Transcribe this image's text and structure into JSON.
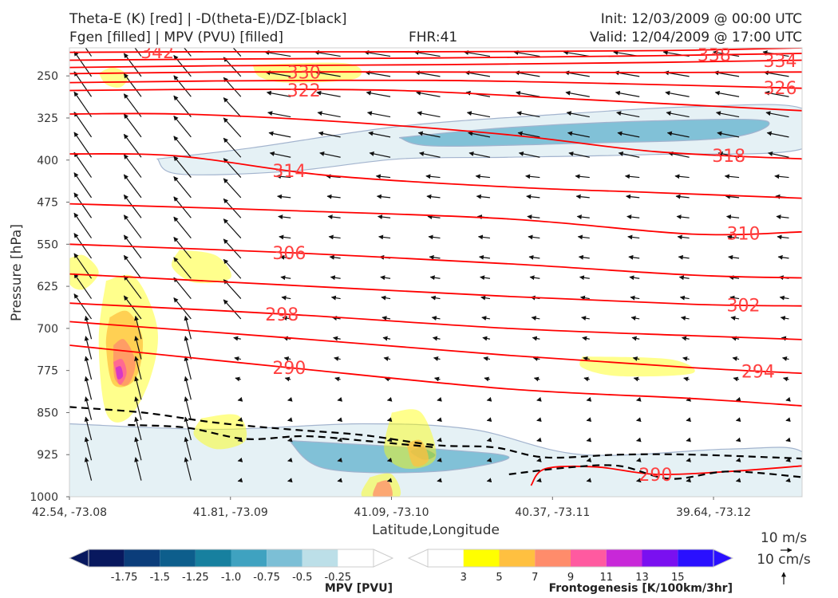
{
  "header": {
    "title_line1": "Theta-E (K) [red] | -D(theta-E)/DZ-[black]",
    "title_line2": "Fgen [filled] | MPV (PVU) [filled]",
    "fhr": "FHR:41",
    "init": "Init: 12/03/2009 @ 00:00 UTC",
    "valid": "Valid: 12/04/2009 @ 17:00 UTC"
  },
  "colors": {
    "theta_e": "#ff0000",
    "ddz": "#000000",
    "mpv": [
      "#08185e",
      "#0b3d7a",
      "#0d5e8c",
      "#17809f",
      "#3fa2c0",
      "#7cbfd6",
      "#bcdfe8",
      "#ffffff"
    ],
    "fgen": [
      "#ffffff",
      "#ffff00",
      "#ffc040",
      "#ff8c6b",
      "#ff5aa0",
      "#c828d8",
      "#7a10f0",
      "#2a10ff"
    ]
  },
  "chart_data": {
    "type": "cross-section",
    "ylabel": "Pressure [hPa]",
    "xlabel": "Latitude,Longitude",
    "y_ticks": [
      250,
      325,
      400,
      475,
      550,
      625,
      700,
      775,
      850,
      925,
      1000
    ],
    "ylim": [
      1000,
      200
    ],
    "y_inverted": true,
    "x_ticks": [
      "42.54, -73.08",
      "41.81, -73.09",
      "41.09, -73.10",
      "40.37, -73.11",
      "39.64, -73.12"
    ],
    "theta_e_contours": [
      {
        "level": 342,
        "points": [
          [
            0.0,
            208
          ],
          [
            0.2,
            207
          ],
          [
            0.5,
            207
          ],
          [
            0.8,
            205
          ],
          [
            1.0,
            200
          ]
        ]
      },
      {
        "level": 338,
        "points": [
          [
            0.0,
            222
          ],
          [
            0.2,
            220
          ],
          [
            0.5,
            218
          ],
          [
            0.8,
            214
          ],
          [
            1.0,
            210
          ]
        ]
      },
      {
        "level": 334,
        "points": [
          [
            0.0,
            235
          ],
          [
            0.2,
            232
          ],
          [
            0.5,
            230
          ],
          [
            0.8,
            226
          ],
          [
            1.0,
            222
          ]
        ]
      },
      {
        "level": 330,
        "points": [
          [
            0.0,
            246
          ],
          [
            0.2,
            243
          ],
          [
            0.5,
            243
          ],
          [
            0.8,
            244
          ],
          [
            1.0,
            243
          ]
        ]
      },
      {
        "level": 326,
        "points": [
          [
            0.0,
            262
          ],
          [
            0.2,
            259
          ],
          [
            0.5,
            258
          ],
          [
            0.75,
            264
          ],
          [
            1.0,
            272
          ]
        ]
      },
      {
        "level": 322,
        "points": [
          [
            0.0,
            276
          ],
          [
            0.2,
            274
          ],
          [
            0.45,
            276
          ],
          [
            0.7,
            292
          ],
          [
            1.0,
            312
          ]
        ]
      },
      {
        "level": 318,
        "points": [
          [
            0.0,
            318
          ],
          [
            0.15,
            318
          ],
          [
            0.35,
            330
          ],
          [
            0.6,
            355
          ],
          [
            0.8,
            385
          ],
          [
            1.0,
            398
          ]
        ]
      },
      {
        "level": 314,
        "points": [
          [
            0.0,
            389
          ],
          [
            0.15,
            393
          ],
          [
            0.35,
            427
          ],
          [
            0.6,
            448
          ],
          [
            0.8,
            458
          ],
          [
            1.0,
            468
          ]
        ]
      },
      {
        "level": 310,
        "points": [
          [
            0.0,
            478
          ],
          [
            0.3,
            490
          ],
          [
            0.6,
            505
          ],
          [
            0.85,
            532
          ],
          [
            1.0,
            528
          ]
        ]
      },
      {
        "level": 306,
        "points": [
          [
            0.0,
            550
          ],
          [
            0.3,
            565
          ],
          [
            0.6,
            585
          ],
          [
            0.85,
            605
          ],
          [
            1.0,
            610
          ]
        ]
      },
      {
        "level": 302,
        "points": [
          [
            0.0,
            603
          ],
          [
            0.3,
            623
          ],
          [
            0.6,
            643
          ],
          [
            0.85,
            657
          ],
          [
            1.0,
            660
          ]
        ]
      },
      {
        "level": 298,
        "points": [
          [
            0.0,
            655
          ],
          [
            0.3,
            675
          ],
          [
            0.6,
            700
          ],
          [
            0.85,
            713
          ],
          [
            1.0,
            720
          ]
        ]
      },
      {
        "level": 294,
        "points": [
          [
            0.0,
            688
          ],
          [
            0.3,
            717
          ],
          [
            0.6,
            748
          ],
          [
            0.85,
            770
          ],
          [
            1.0,
            780
          ]
        ]
      },
      {
        "level": 290,
        "points": [
          [
            0.0,
            730
          ],
          [
            0.3,
            770
          ],
          [
            0.6,
            808
          ],
          [
            0.85,
            825
          ],
          [
            1.0,
            838
          ]
        ]
      },
      {
        "level": 290,
        "points": [
          [
            0.63,
            980
          ],
          [
            0.65,
            950
          ],
          [
            0.72,
            947
          ],
          [
            0.8,
            960
          ],
          [
            0.9,
            955
          ],
          [
            1.0,
            945
          ]
        ]
      }
    ],
    "ddz_contours": [
      {
        "points": [
          [
            0.0,
            840
          ],
          [
            0.1,
            850
          ],
          [
            0.2,
            868
          ],
          [
            0.3,
            880
          ],
          [
            0.4,
            890
          ],
          [
            0.5,
            908
          ],
          [
            0.58,
            912
          ],
          [
            0.65,
            930
          ],
          [
            0.75,
            925
          ],
          [
            0.85,
            925
          ],
          [
            1.0,
            932
          ]
        ]
      },
      {
        "points": [
          [
            0.08,
            872
          ],
          [
            0.16,
            877
          ],
          [
            0.24,
            897
          ],
          [
            0.32,
            892
          ],
          [
            0.4,
            900
          ],
          [
            0.5,
            912
          ]
        ]
      },
      {
        "points": [
          [
            0.6,
            960
          ],
          [
            0.68,
            948
          ],
          [
            0.75,
            945
          ],
          [
            0.82,
            968
          ],
          [
            0.9,
            955
          ],
          [
            1.0,
            965
          ]
        ]
      }
    ],
    "mpv_regions": [
      {
        "value": -0.25,
        "points": [
          [
            0.12,
            398
          ],
          [
            0.25,
            378
          ],
          [
            0.45,
            340
          ],
          [
            0.65,
            320
          ],
          [
            0.85,
            305
          ],
          [
            1.0,
            308
          ],
          [
            1.0,
            380
          ],
          [
            0.8,
            390
          ],
          [
            0.6,
            395
          ],
          [
            0.45,
            398
          ],
          [
            0.3,
            420
          ],
          [
            0.15,
            425
          ]
        ]
      },
      {
        "value": -0.5,
        "points": [
          [
            0.45,
            360
          ],
          [
            0.6,
            342
          ],
          [
            0.8,
            330
          ],
          [
            0.95,
            330
          ],
          [
            0.9,
            360
          ],
          [
            0.7,
            370
          ],
          [
            0.5,
            375
          ]
        ]
      },
      {
        "value": -0.25,
        "points": [
          [
            0.0,
            870
          ],
          [
            0.2,
            880
          ],
          [
            0.4,
            870
          ],
          [
            0.55,
            880
          ],
          [
            0.7,
            925
          ],
          [
            0.9,
            915
          ],
          [
            1.0,
            920
          ],
          [
            1.0,
            1000
          ],
          [
            0.0,
            1000
          ]
        ]
      },
      {
        "value": -0.5,
        "points": [
          [
            0.3,
            900
          ],
          [
            0.5,
            915
          ],
          [
            0.6,
            930
          ],
          [
            0.5,
            955
          ],
          [
            0.35,
            950
          ]
        ]
      },
      {
        "value": -0.75,
        "points": [
          [
            0.48,
            910
          ],
          [
            0.5,
            925
          ],
          [
            0.485,
            935
          ],
          [
            0.465,
            920
          ]
        ]
      }
    ],
    "fgen_regions": [
      {
        "value": 3,
        "points": [
          [
            0.04,
            245
          ],
          [
            0.06,
            235
          ],
          [
            0.08,
            250
          ],
          [
            0.07,
            270
          ],
          [
            0.05,
            265
          ]
        ]
      },
      {
        "value": 3,
        "points": [
          [
            0.25,
            230
          ],
          [
            0.38,
            228
          ],
          [
            0.39,
            255
          ],
          [
            0.3,
            262
          ],
          [
            0.26,
            252
          ]
        ]
      },
      {
        "value": 3,
        "points": [
          [
            0.0,
            575
          ],
          [
            0.02,
            570
          ],
          [
            0.04,
            600
          ],
          [
            0.02,
            630
          ],
          [
            0.0,
            620
          ]
        ]
      },
      {
        "value": 3,
        "points": [
          [
            0.15,
            560
          ],
          [
            0.2,
            570
          ],
          [
            0.22,
            610
          ],
          [
            0.17,
            618
          ],
          [
            0.14,
            590
          ]
        ]
      },
      {
        "value": 3,
        "points": [
          [
            0.05,
            615
          ],
          [
            0.09,
            610
          ],
          [
            0.12,
            700
          ],
          [
            0.11,
            790
          ],
          [
            0.08,
            860
          ],
          [
            0.05,
            850
          ],
          [
            0.04,
            720
          ]
        ]
      },
      {
        "value": 5,
        "points": [
          [
            0.055,
            680
          ],
          [
            0.08,
            670
          ],
          [
            0.1,
            720
          ],
          [
            0.09,
            790
          ],
          [
            0.06,
            800
          ],
          [
            0.05,
            730
          ]
        ]
      },
      {
        "value": 7,
        "points": [
          [
            0.06,
            730
          ],
          [
            0.075,
            720
          ],
          [
            0.09,
            760
          ],
          [
            0.08,
            800
          ],
          [
            0.062,
            790
          ]
        ]
      },
      {
        "value": 9,
        "points": [
          [
            0.06,
            760
          ],
          [
            0.072,
            755
          ],
          [
            0.078,
            780
          ],
          [
            0.068,
            800
          ]
        ]
      },
      {
        "value": 11,
        "points": [
          [
            0.063,
            770
          ],
          [
            0.07,
            768
          ],
          [
            0.073,
            785
          ],
          [
            0.066,
            790
          ]
        ]
      },
      {
        "value": 3,
        "points": [
          [
            0.7,
            750
          ],
          [
            0.82,
            755
          ],
          [
            0.85,
            780
          ],
          [
            0.75,
            785
          ],
          [
            0.7,
            770
          ]
        ]
      },
      {
        "value": 3,
        "points": [
          [
            0.18,
            860
          ],
          [
            0.23,
            855
          ],
          [
            0.24,
            900
          ],
          [
            0.2,
            915
          ],
          [
            0.17,
            890
          ]
        ]
      },
      {
        "value": 3,
        "points": [
          [
            0.44,
            850
          ],
          [
            0.48,
            850
          ],
          [
            0.5,
            930
          ],
          [
            0.46,
            950
          ],
          [
            0.43,
            920
          ]
        ]
      },
      {
        "value": 5,
        "points": [
          [
            0.46,
            905
          ],
          [
            0.48,
            900
          ],
          [
            0.49,
            935
          ],
          [
            0.47,
            945
          ]
        ]
      },
      {
        "value": 3,
        "points": [
          [
            0.41,
            965
          ],
          [
            0.44,
            960
          ],
          [
            0.45,
            1000
          ],
          [
            0.4,
            1000
          ]
        ]
      },
      {
        "value": 7,
        "points": [
          [
            0.42,
            975
          ],
          [
            0.435,
            972
          ],
          [
            0.44,
            1000
          ],
          [
            0.415,
            1000
          ]
        ]
      }
    ],
    "vector_field": {
      "u_rows": "westward-sheared jet aloft, weak flow near surface",
      "reference": "10 m/s"
    },
    "colorbars": [
      {
        "title": "MPV [PVU]",
        "labels": [
          "-1.75",
          "-1.5",
          "-1.25",
          "-1.0",
          "-0.75",
          "-0.5",
          "-0.25"
        ]
      },
      {
        "title": "Frontogenesis [K/100km/3hr]",
        "labels": [
          "3",
          "5",
          "7",
          "9",
          "11",
          "13",
          "15"
        ]
      }
    ],
    "vector_legend": [
      "10 m/s",
      "10 cm/s"
    ]
  }
}
